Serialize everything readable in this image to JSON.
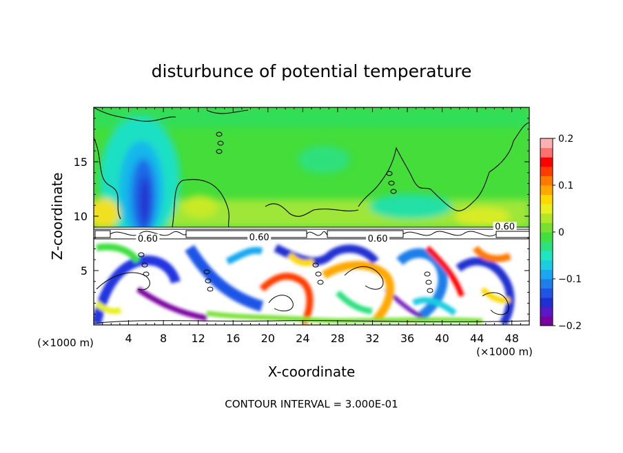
{
  "chart_data": {
    "type": "heatmap",
    "title": "disturbunce of potential temperature",
    "xlabel": "X-coordinate",
    "ylabel": "Z-coordinate",
    "x_unit": "(×1000 m)",
    "y_unit": "(×1000 m)",
    "xlim": [
      0,
      50
    ],
    "ylim": [
      0,
      20
    ],
    "x_ticks": [
      4,
      8,
      12,
      16,
      20,
      24,
      28,
      32,
      36,
      40,
      44,
      48
    ],
    "y_ticks": [
      5,
      10,
      15
    ],
    "footer": "CONTOUR INTERVAL = 3.000E-01",
    "colorbar": {
      "ticks": [
        0.2,
        0.1,
        0,
        -0.1,
        -0.2
      ],
      "tick_labels": [
        "0.2",
        "0.1",
        "0",
        "−0.1",
        "−0.2"
      ],
      "range": [
        -0.2,
        0.2
      ],
      "colors": [
        "#7a00a0",
        "#5a18c8",
        "#2030d0",
        "#1f55e6",
        "#1e7fe8",
        "#19a8f0",
        "#1ccde0",
        "#1fe5c0",
        "#2ee080",
        "#40e040",
        "#78e030",
        "#b0e828",
        "#e8f020",
        "#ffd800",
        "#ffa800",
        "#ff7800",
        "#ff3c00",
        "#ff0000",
        "#ff7070",
        "#ffb0b0"
      ]
    },
    "contour_labels": [
      {
        "text": "0.60",
        "x": 6.2,
        "z": 7.8
      },
      {
        "text": "0.60",
        "x": 19.0,
        "z": 7.9
      },
      {
        "text": "0.60",
        "x": 32.6,
        "z": 7.8
      },
      {
        "text": "0.60",
        "x": 47.2,
        "z": 8.9
      }
    ]
  }
}
